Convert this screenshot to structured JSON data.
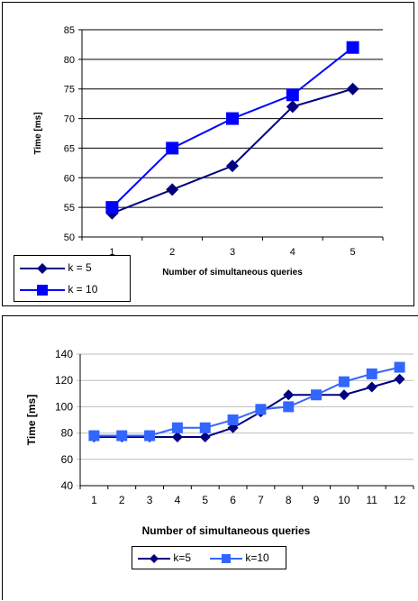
{
  "chart_data": [
    {
      "type": "line",
      "title": "",
      "xlabel": "Number of simultaneous queries",
      "ylabel": "Time [ms]",
      "categories": [
        "1",
        "2",
        "3",
        "4",
        "5"
      ],
      "ylim": [
        50,
        85
      ],
      "yticks": [
        "50",
        "55",
        "60",
        "65",
        "70",
        "75",
        "80",
        "85"
      ],
      "grid": true,
      "legend": "bottom-left",
      "series": [
        {
          "name": "k = 5",
          "values": [
            54,
            58,
            62,
            72,
            75
          ],
          "color": "#000080",
          "marker": "diamond"
        },
        {
          "name": "k = 10",
          "values": [
            55,
            65,
            70,
            74,
            82
          ],
          "color": "#0000FF",
          "marker": "square"
        }
      ]
    },
    {
      "type": "line",
      "title": "",
      "xlabel": "Number of simultaneous queries",
      "ylabel": "Time [ms]",
      "categories": [
        "1",
        "2",
        "3",
        "4",
        "5",
        "6",
        "7",
        "8",
        "9",
        "10",
        "11",
        "12"
      ],
      "ylim": [
        40,
        140
      ],
      "yticks": [
        "40",
        "60",
        "80",
        "100",
        "120",
        "140"
      ],
      "grid": true,
      "legend": "bottom-center",
      "series": [
        {
          "name": "k=5",
          "values": [
            77,
            77,
            77,
            77,
            77,
            84,
            96,
            109,
            109,
            109,
            115,
            121
          ],
          "color": "#000080",
          "marker": "diamond"
        },
        {
          "name": "k=10",
          "values": [
            78,
            78,
            78,
            84,
            84,
            90,
            98,
            100,
            109,
            119,
            125,
            130
          ],
          "color": "#3366FF",
          "marker": "square"
        }
      ]
    }
  ]
}
